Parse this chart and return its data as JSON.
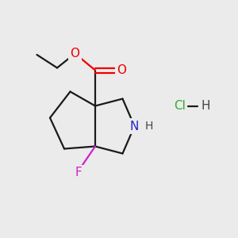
{
  "background_color": "#ebebeb",
  "bond_color": "#1a1a1a",
  "O_color": "#ee0000",
  "N_color": "#2222cc",
  "F_color": "#cc22cc",
  "Cl_color": "#33aa33",
  "H_bond_color": "#444444",
  "line_width": 1.6,
  "figsize": [
    3.0,
    3.0
  ],
  "dpi": 100,
  "xlim": [
    0,
    10
  ],
  "ylim": [
    0,
    10
  ]
}
